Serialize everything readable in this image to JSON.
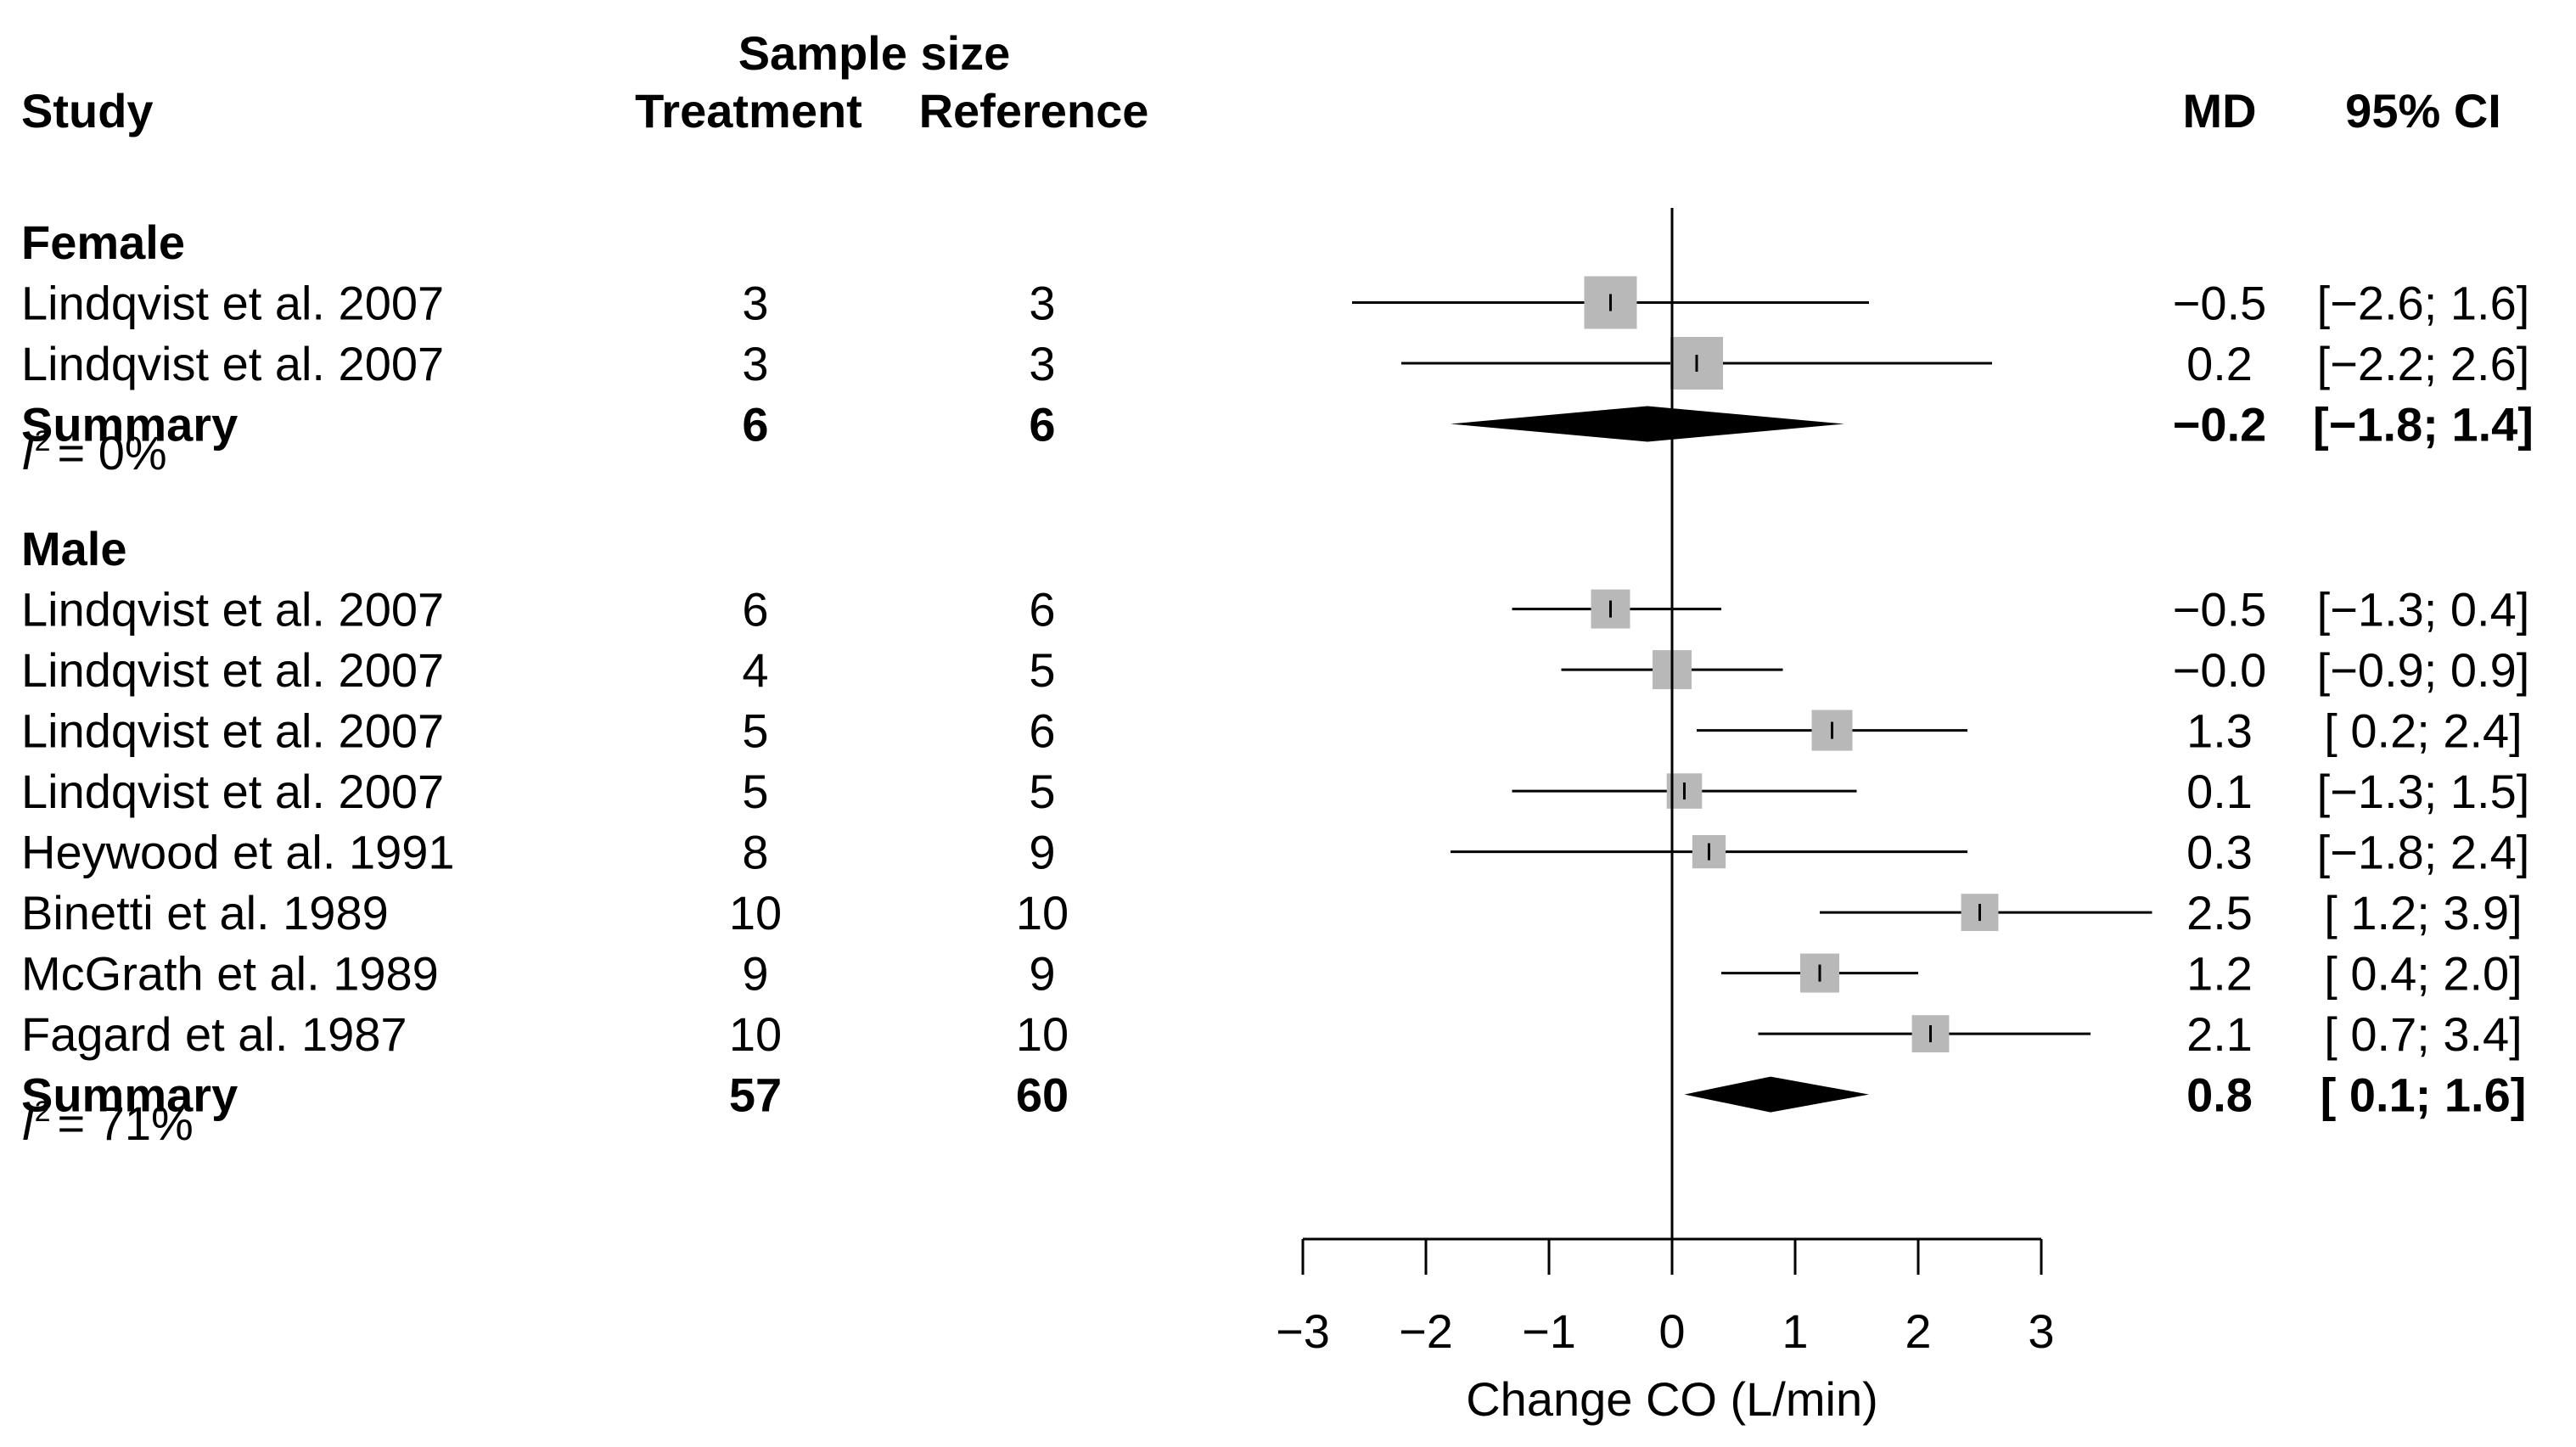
{
  "chart_data": {
    "type": "forest",
    "headers": {
      "study": "Study",
      "sample_size": "Sample size",
      "treatment": "Treatment",
      "reference": "Reference",
      "md": "MD",
      "ci": "95% CI"
    },
    "xlabel": "Change CO (L/min)",
    "xlim": [
      -3,
      3
    ],
    "ticks": [
      -3,
      -2,
      -1,
      0,
      1,
      2,
      3
    ],
    "tick_labels": [
      "−3",
      "−2",
      "−1",
      "0",
      "1",
      "2",
      "3"
    ],
    "groups": [
      {
        "name": "Female",
        "heterogeneity": "= 0%",
        "studies": [
          {
            "study": "Lindqvist et al. 2007",
            "treatment": "3",
            "reference": "3",
            "md": -0.5,
            "lower": -2.6,
            "upper": 1.6,
            "md_text": "−0.5",
            "ci_text": "[−2.6; 1.6]",
            "weight": 1.0
          },
          {
            "study": "Lindqvist et al. 2007",
            "treatment": "3",
            "reference": "3",
            "md": 0.2,
            "lower": -2.2,
            "upper": 2.6,
            "md_text": "0.2",
            "ci_text": "[−2.2; 2.6]",
            "weight": 1.0
          }
        ],
        "summary": {
          "label": "Summary",
          "treatment": "6",
          "reference": "6",
          "md": -0.2,
          "lower": -1.8,
          "upper": 1.4,
          "md_text": "−0.2",
          "ci_text": "[−1.8; 1.4]"
        }
      },
      {
        "name": "Male",
        "heterogeneity": "= 71%",
        "studies": [
          {
            "study": "Lindqvist et al. 2007",
            "treatment": "6",
            "reference": "6",
            "md": -0.5,
            "lower": -1.3,
            "upper": 0.4,
            "md_text": "−0.5",
            "ci_text": "[−1.3; 0.4]",
            "weight": 0.55
          },
          {
            "study": "Lindqvist et al. 2007",
            "treatment": "4",
            "reference": "5",
            "md": -0.0,
            "lower": -0.9,
            "upper": 0.9,
            "md_text": "−0.0",
            "ci_text": "[−0.9; 0.9]",
            "weight": 0.55
          },
          {
            "study": "Lindqvist et al. 2007",
            "treatment": "5",
            "reference": "6",
            "md": 1.3,
            "lower": 0.2,
            "upper": 2.4,
            "md_text": "1.3",
            "ci_text": "[ 0.2; 2.4]",
            "weight": 0.6
          },
          {
            "study": "Lindqvist et al. 2007",
            "treatment": "5",
            "reference": "5",
            "md": 0.1,
            "lower": -1.3,
            "upper": 1.5,
            "md_text": "0.1",
            "ci_text": "[−1.3; 1.5]",
            "weight": 0.45
          },
          {
            "study": "Heywood et al. 1991",
            "treatment": "8",
            "reference": "9",
            "md": 0.3,
            "lower": -1.8,
            "upper": 2.4,
            "md_text": "0.3",
            "ci_text": "[−1.8; 2.4]",
            "weight": 0.4
          },
          {
            "study": "Binetti et al. 1989",
            "treatment": "10",
            "reference": "10",
            "md": 2.5,
            "lower": 1.2,
            "upper": 3.9,
            "md_text": "2.5",
            "ci_text": "[ 1.2; 3.9]",
            "weight": 0.5
          },
          {
            "study": "McGrath et al. 1989",
            "treatment": "9",
            "reference": "9",
            "md": 1.2,
            "lower": 0.4,
            "upper": 2.0,
            "md_text": "1.2",
            "ci_text": "[ 0.4; 2.0]",
            "weight": 0.55
          },
          {
            "study": "Fagard et al. 1987",
            "treatment": "10",
            "reference": "10",
            "md": 2.1,
            "lower": 0.7,
            "upper": 3.4,
            "md_text": "2.1",
            "ci_text": "[ 0.7; 3.4]",
            "weight": 0.5
          }
        ],
        "summary": {
          "label": "Summary",
          "treatment": "57",
          "reference": "60",
          "md": 0.8,
          "lower": 0.1,
          "upper": 1.6,
          "md_text": "0.8",
          "ci_text": "[ 0.1; 1.6]"
        }
      }
    ]
  }
}
